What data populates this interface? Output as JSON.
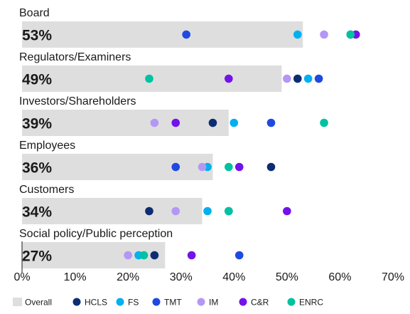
{
  "chart_data": {
    "type": "bar",
    "title": "",
    "xlabel": "",
    "ylabel": "",
    "xlim": [
      0,
      70
    ],
    "x_ticks": [
      "0%",
      "10%",
      "20%",
      "30%",
      "40%",
      "50%",
      "60%",
      "70%"
    ],
    "x_tick_values": [
      0,
      10,
      20,
      30,
      40,
      50,
      60,
      70
    ],
    "grid": false,
    "legend_position": "bottom",
    "categories": [
      "Board",
      "Regulators/Examiners",
      "Investors/Shareholders",
      "Employees",
      "Customers",
      "Social policy/Public perception"
    ],
    "overall": {
      "name": "Overall",
      "color": "#dedede",
      "values": [
        53,
        49,
        39,
        36,
        34,
        27
      ],
      "labels": [
        "53%",
        "49%",
        "39%",
        "36%",
        "34%",
        "27%"
      ]
    },
    "series": [
      {
        "name": "HCLS",
        "color": "#0c2d72",
        "values": [
          62,
          52,
          36,
          47,
          24,
          25
        ]
      },
      {
        "name": "FS",
        "color": "#00b0f0",
        "values": [
          52,
          54,
          40,
          35,
          35,
          22
        ]
      },
      {
        "name": "TMT",
        "color": "#1e49e2",
        "values": [
          31,
          56,
          47,
          29,
          39,
          41
        ]
      },
      {
        "name": "IM",
        "color": "#b497f5",
        "values": [
          57,
          50,
          25,
          34,
          29,
          20
        ]
      },
      {
        "name": "C&R",
        "color": "#7213ea",
        "values": [
          63,
          39,
          29,
          41,
          50,
          32
        ]
      },
      {
        "name": "ENRC",
        "color": "#00c2a0",
        "values": [
          62,
          24,
          57,
          39,
          39,
          23
        ]
      }
    ]
  }
}
